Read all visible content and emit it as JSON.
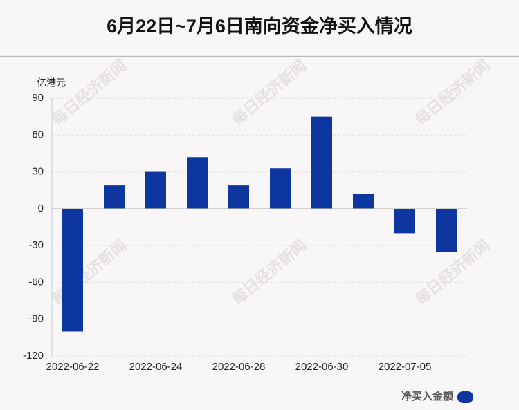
{
  "chart_data": {
    "type": "bar",
    "title": "6月22日~7月6日南向资金净买入情况",
    "ylabel": "亿港元",
    "watermark": "每日经济新闻",
    "categories": [
      "2022-06-22",
      null,
      "2022-06-24",
      null,
      "2022-06-28",
      null,
      "2022-06-30",
      null,
      "2022-07-05",
      null
    ],
    "series": [
      {
        "name": "净买入金额",
        "color": "#0d36a0",
        "values": [
          -100,
          19,
          30,
          42,
          19,
          33,
          75,
          12,
          -20,
          -35
        ]
      }
    ],
    "ylim": [
      -120,
      90
    ],
    "yticks": [
      -120,
      -90,
      -60,
      -30,
      0,
      30,
      60,
      90
    ],
    "grid": true,
    "legend": "lower right"
  }
}
